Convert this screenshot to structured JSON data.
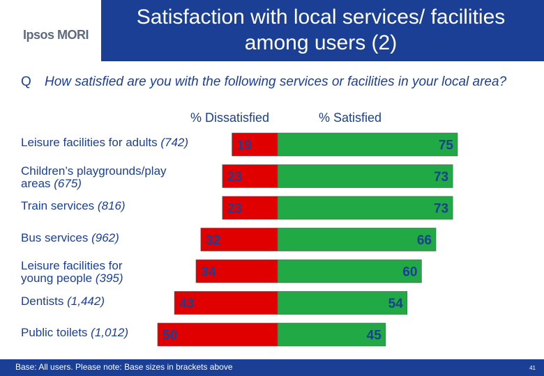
{
  "header": {
    "logo_text": "Ipsos MORI",
    "title": "Satisfaction with local services/ facilities among users (2)"
  },
  "question": {
    "marker": "Q",
    "text": "How satisfied are you with the following services or facilities in your local area?"
  },
  "colors": {
    "dissatisfied": "#e00000",
    "satisfied": "#21a945",
    "brand": "#1b3f95"
  },
  "chart_data": {
    "type": "bar",
    "orientation": "horizontal-diverging",
    "series": [
      {
        "name": "% Dissatisfied",
        "values": [
          19,
          23,
          23,
          32,
          34,
          43,
          50
        ]
      },
      {
        "name": "% Satisfied",
        "values": [
          75,
          73,
          73,
          66,
          60,
          54,
          45
        ]
      }
    ],
    "categories": [
      {
        "label": "Leisure facilities for adults",
        "base": "(742)"
      },
      {
        "label": "Children’s playgrounds/play areas",
        "base": "(675)"
      },
      {
        "label": "Train services",
        "base": "(816)"
      },
      {
        "label": "Bus services",
        "base": "(962)"
      },
      {
        "label": "Leisure facilities for young people",
        "base": "(395)"
      },
      {
        "label": "Dentists",
        "base": "(1,442)"
      },
      {
        "label": "Public toilets",
        "base": "(1,012)"
      }
    ]
  },
  "footer": {
    "note": "Base: All users.  Please note: Base sizes in brackets above",
    "page": "41"
  }
}
